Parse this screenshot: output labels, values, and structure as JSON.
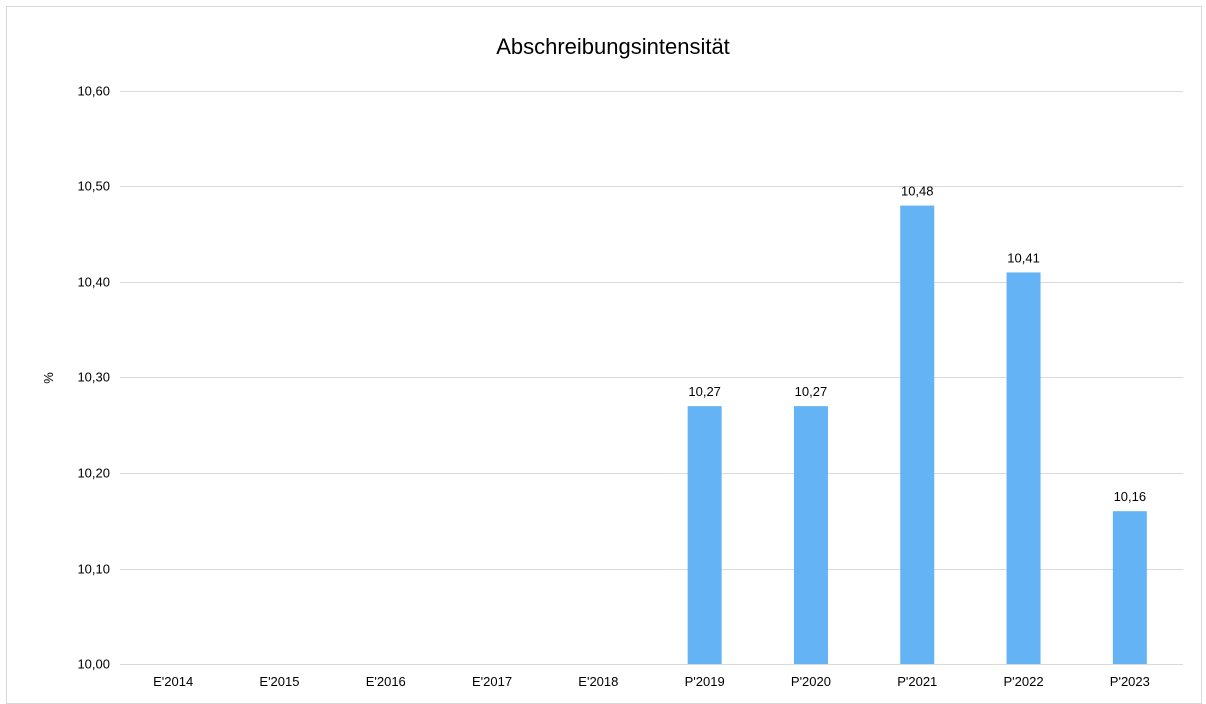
{
  "chart_data": {
    "type": "bar",
    "title": "Abschreibungsintensität",
    "xlabel": "",
    "ylabel": "%",
    "categories": [
      "E'2014",
      "E'2015",
      "E'2016",
      "E'2017",
      "E'2018",
      "P'2019",
      "P'2020",
      "P'2021",
      "P'2022",
      "P'2023"
    ],
    "values": [
      null,
      null,
      null,
      null,
      null,
      10.27,
      10.27,
      10.48,
      10.41,
      10.16
    ],
    "data_labels": [
      "",
      "",
      "",
      "",
      "",
      "10,27",
      "10,27",
      "10,48",
      "10,41",
      "10,16"
    ],
    "ylim": [
      10.0,
      10.6
    ],
    "yticks": [
      10.0,
      10.1,
      10.2,
      10.3,
      10.4,
      10.5,
      10.6
    ],
    "ytick_labels": [
      "10,00",
      "10,10",
      "10,20",
      "10,30",
      "10,40",
      "10,50",
      "10,60"
    ],
    "grid": true,
    "legend": "none",
    "bar_color": "#63b3f5"
  }
}
